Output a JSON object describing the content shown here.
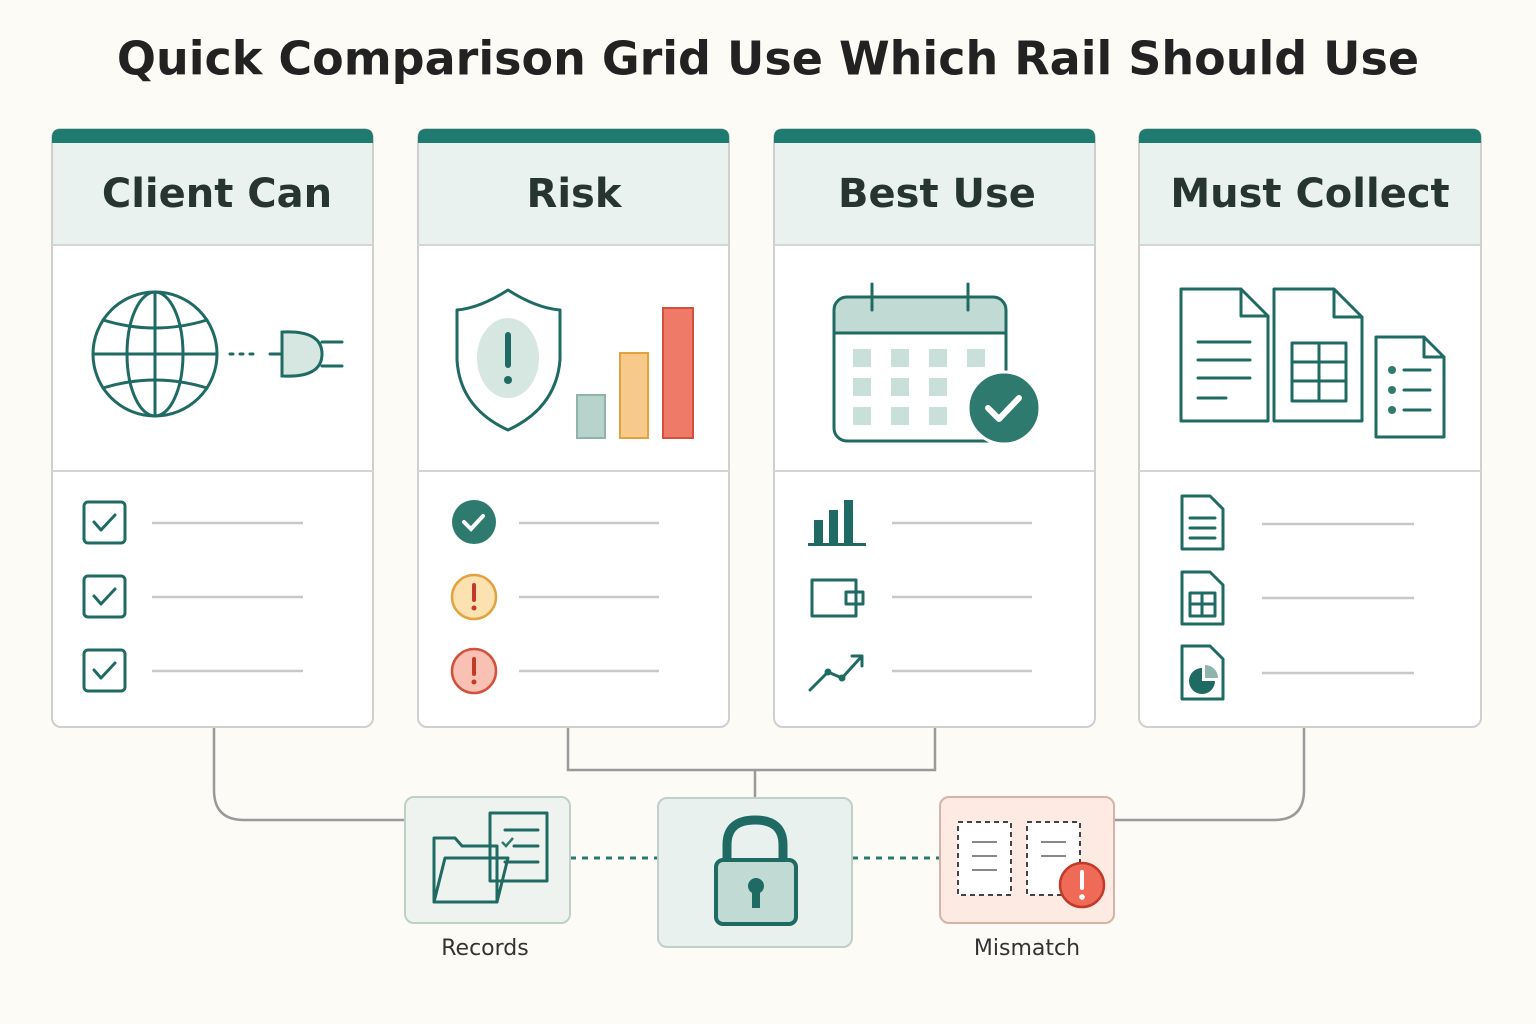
{
  "title": "Quick Comparison Grid Use Which Rail Should Use",
  "columns": [
    {
      "header": "Client Can"
    },
    {
      "header": "Risk"
    },
    {
      "header": "Best Use"
    },
    {
      "header": "Must Collect"
    }
  ],
  "nodes": [
    {
      "label": "Records"
    },
    {
      "label": "Mismatch"
    }
  ]
}
